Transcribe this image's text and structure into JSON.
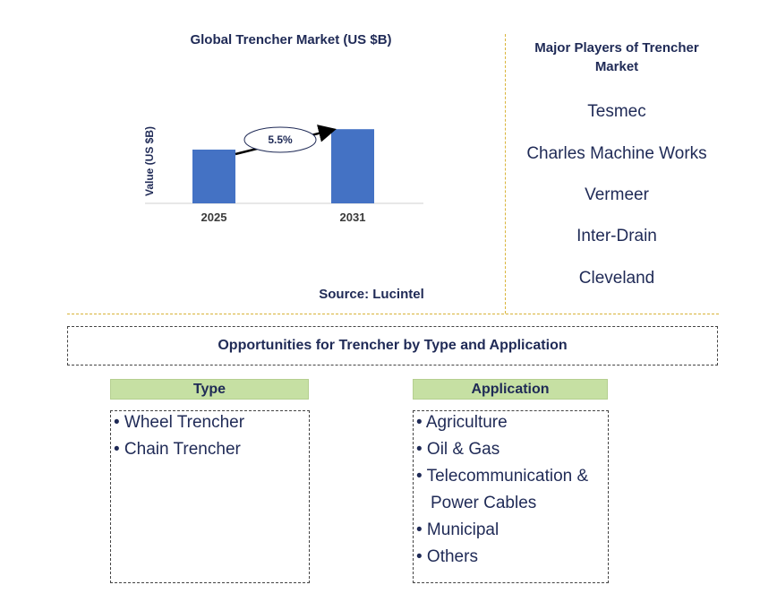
{
  "chart_title": "Global Trencher Market (US $B)",
  "chart_data": {
    "type": "bar",
    "categories": [
      "2025",
      "2031"
    ],
    "values": [
      1.0,
      1.38
    ],
    "ylabel": "Value (US $B)",
    "ylim": [
      0,
      1.55
    ],
    "grid": false,
    "annotation": "5.5%",
    "bar_color": "#4472c4"
  },
  "source": "Source: Lucintel",
  "players": {
    "title": "Major Players of Trencher Market",
    "items": [
      "Tesmec",
      "Charles Machine Works",
      "Vermeer",
      "Inter-Drain",
      "Cleveland"
    ]
  },
  "opportunities_title": "Opportunities for Trencher by Type and Application",
  "type": {
    "header": "Type",
    "items": [
      "• Wheel Trencher",
      "• Chain Trencher"
    ]
  },
  "application": {
    "header": "Application",
    "items": [
      "• Agriculture",
      "• Oil & Gas",
      "• Telecommunication &",
      "Power Cables",
      "• Municipal",
      "• Others"
    ]
  },
  "colors": {
    "text": "#1f2a56",
    "divider": "#d9b43a",
    "header_bg": "#c6e0a3"
  }
}
